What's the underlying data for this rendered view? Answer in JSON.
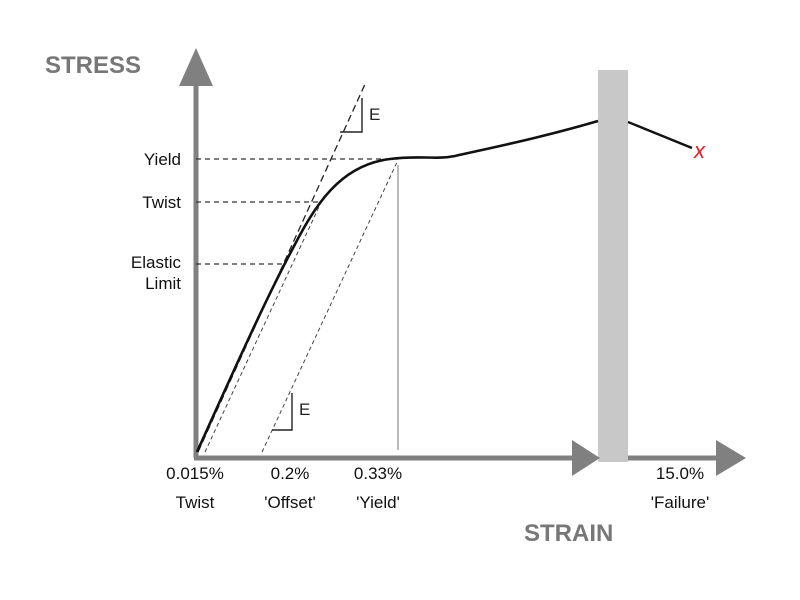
{
  "axes": {
    "y_title": "STRESS",
    "x_title": "STRAIN"
  },
  "y_levels": {
    "yield": "Yield",
    "twist": "Twist",
    "elastic_limit_line1": "Elastic",
    "elastic_limit_line2": "Limit"
  },
  "x_markers": [
    {
      "value": "0.015%",
      "label": "Twist"
    },
    {
      "value": "0.2%",
      "label": "'Offset'"
    },
    {
      "value": "0.33%",
      "label": "'Yield'"
    },
    {
      "value": "15.0%",
      "label": "'Failure'"
    }
  ],
  "modulus_label_top": "E",
  "modulus_label_bottom": "E",
  "failure_mark": "x",
  "colors": {
    "axis": "#808080",
    "axis_break": "#c8c8c8",
    "curve": "#111111",
    "guide": "#333333",
    "yield_line": "#bbbbbb",
    "failure": "#e0202a"
  }
}
